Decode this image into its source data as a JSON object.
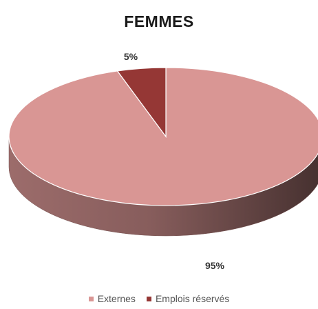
{
  "chart_data": {
    "type": "pie",
    "title": "FEMMES",
    "categories": [
      "Externes",
      "Emplois réservés"
    ],
    "values": [
      95,
      5
    ],
    "data_labels": [
      "95%",
      "5%"
    ],
    "colors": [
      "#d99694",
      "#953735"
    ],
    "legend_position": "bottom",
    "style": "3d"
  }
}
